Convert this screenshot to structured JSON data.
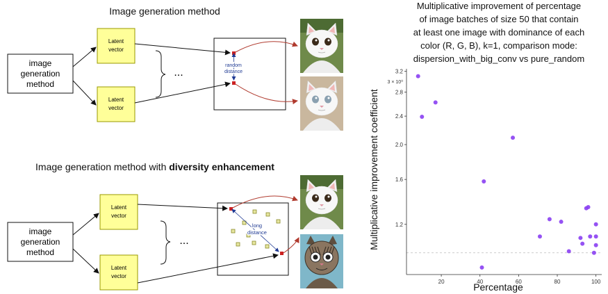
{
  "diagram": {
    "top_title": "Image generation method",
    "bottom_title_prefix": "Image generation method with ",
    "bottom_title_bold": "diversity enhancement",
    "method_label": [
      "image",
      "generation",
      "method"
    ],
    "latent_label": [
      "Latent",
      "vector"
    ],
    "ellipsis": "...",
    "random_distance": [
      "random",
      "distance"
    ],
    "long_distance": [
      "long",
      "distance"
    ],
    "colors": {
      "latent_fill": "#ffff99",
      "latent_stroke": "#999900",
      "point_red": "#cc2222",
      "arrow_red": "#b03a2e",
      "distance_blue": "#1f3a93",
      "square_fill": "#e6e6a0",
      "square_stroke": "#8a8a2a"
    },
    "images": [
      {
        "name": "white-cat-image-1",
        "kind": "white-cat"
      },
      {
        "name": "white-cat-image-2",
        "kind": "white-cat-alt"
      },
      {
        "name": "white-cat-image-3",
        "kind": "white-cat"
      },
      {
        "name": "cartoon-cat-image",
        "kind": "cartoon-cat"
      }
    ]
  },
  "chart_data": {
    "type": "scatter",
    "title_lines": [
      "Multiplicative improvement of percentage",
      "of image batches of size 50 that contain",
      "at least one image with dominance of each",
      "color (R, G, B),  k=1, comparison mode:",
      "dispersion_with_big_conv vs pure_random"
    ],
    "xlabel": "Percentage",
    "ylabel": "Multiplicative improvement coefficient",
    "xlim": [
      2,
      103
    ],
    "ylim": [
      0.87,
      3.25
    ],
    "y_scale": "log",
    "x_ticks": [
      20,
      40,
      60,
      80,
      100
    ],
    "y_ticks": [
      1.2,
      1.6,
      2.0,
      2.4,
      2.8,
      3.2
    ],
    "y_extra_label": "3 × 10⁰",
    "reference_line_y": 1.0,
    "point_color": "#8a3ff2",
    "x": [
      8,
      10,
      17,
      41,
      42,
      57,
      71,
      76,
      82,
      86,
      92,
      93,
      95,
      96,
      97,
      99,
      100,
      100,
      100
    ],
    "y": [
      3.1,
      2.39,
      2.62,
      0.91,
      1.58,
      2.09,
      1.11,
      1.24,
      1.22,
      1.01,
      1.1,
      1.06,
      1.33,
      1.34,
      1.11,
      1.0,
      1.05,
      1.2,
      1.11
    ]
  }
}
